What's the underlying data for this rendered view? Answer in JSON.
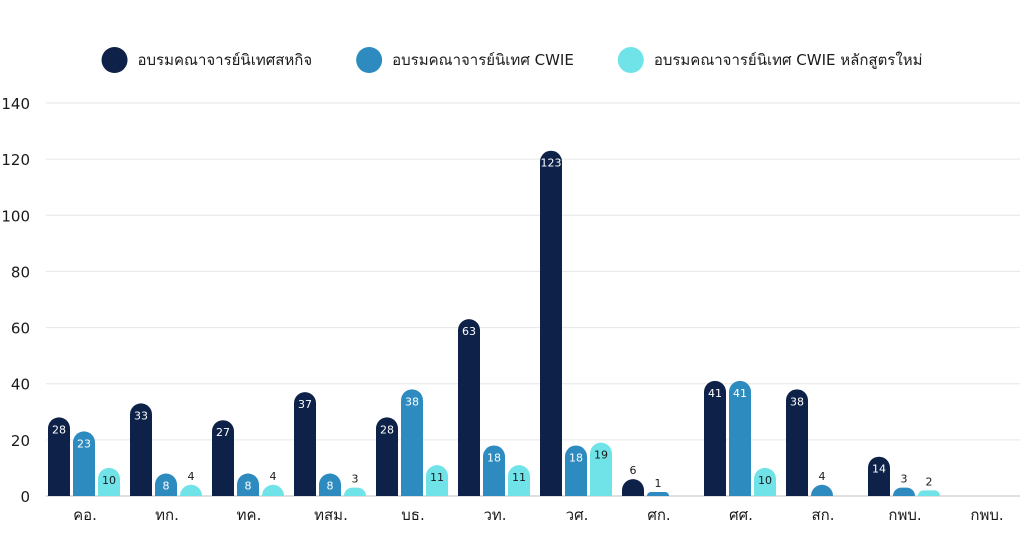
{
  "chart_data": {
    "type": "bar",
    "categories": [
      "คอ.",
      "ทก.",
      "ทค.",
      "ทสม.",
      "บธ.",
      "วท.",
      "วศ.",
      "ศก.",
      "ศศ.",
      "สก.",
      "กพบ.",
      "กพบ."
    ],
    "series": [
      {
        "name": "อบรมคณาจารย์นิเทศสหกิจ",
        "color": "#0d2149",
        "values": [
          28,
          33,
          27,
          37,
          28,
          63,
          123,
          6,
          41,
          38,
          14,
          null
        ]
      },
      {
        "name": "อบรมคณาจารย์นิเทศ CWIE",
        "color": "#2e8bbf",
        "values": [
          23,
          8,
          8,
          8,
          38,
          18,
          18,
          1,
          41,
          4,
          3,
          null
        ]
      },
      {
        "name": "อบรมคณาจารย์นิเทศ CWIE หลักสูตรใหม่",
        "color": "#6fe3e8",
        "values": [
          10,
          4,
          4,
          3,
          11,
          11,
          19,
          null,
          10,
          null,
          2,
          null
        ]
      }
    ],
    "ylim": [
      0,
      140
    ],
    "yticks": [
      0,
      20,
      40,
      60,
      80,
      100,
      120,
      140
    ],
    "grid": true,
    "legend": "top-center",
    "title": "",
    "xlabel": "",
    "ylabel": ""
  }
}
